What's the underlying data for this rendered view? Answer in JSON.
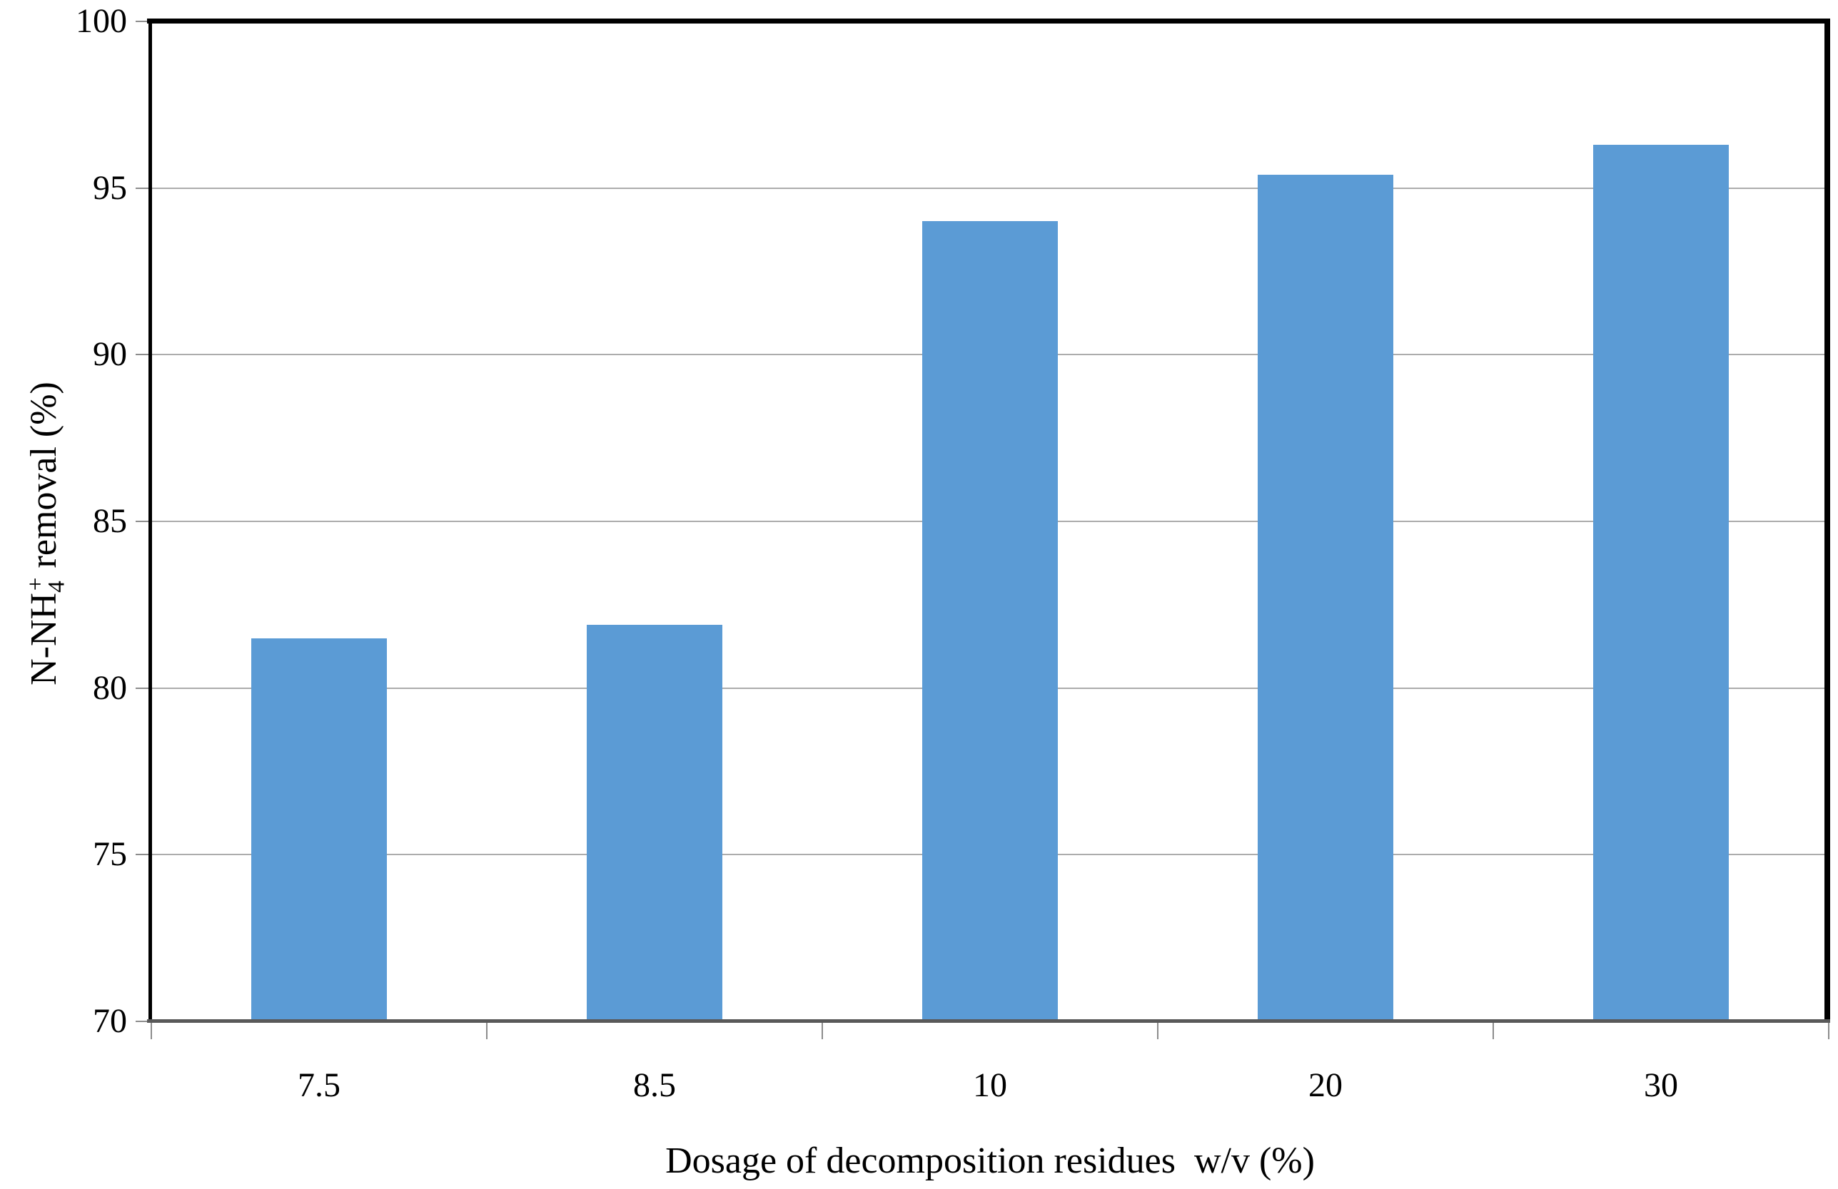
{
  "chart_data": {
    "type": "bar",
    "title": "",
    "categories": [
      "7.5",
      "8.5",
      "10",
      "20",
      "30"
    ],
    "values": [
      81.5,
      81.9,
      94.0,
      95.4,
      96.3
    ],
    "xlabel": "Dosage of decomposition residues  w/v (%)",
    "ylabel": "N-NH4+ removal (%)",
    "ylabel_parts": {
      "prefix": "N-NH",
      "subscript": "4",
      "superscript": "+",
      "suffix": " removal (%)"
    },
    "ylim": [
      70,
      100
    ],
    "yticks": [
      70,
      75,
      80,
      85,
      90,
      95,
      100
    ],
    "grid": "horizontal-major",
    "legend": "none",
    "colors": {
      "bar": "#5B9BD5",
      "gridline": "#ACACAC",
      "tick": "#8C8C8C",
      "frame": "#000000",
      "axis_left": "#000000",
      "axis_bottom": "#595959",
      "text": "#000000",
      "background": "#FFFFFF"
    }
  }
}
